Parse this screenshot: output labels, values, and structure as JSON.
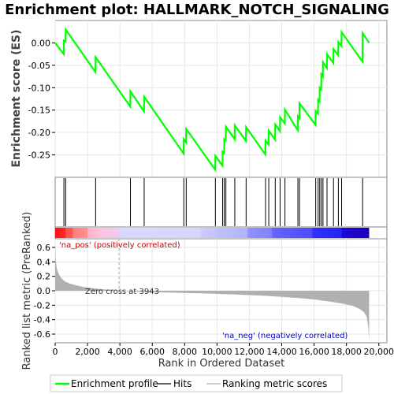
{
  "chart_data": {
    "type": "line",
    "title": "Enrichment plot: HALLMARK_NOTCH_SIGNALING",
    "xlabel": "Rank in Ordered Dataset",
    "es_ylabel": "Enrichment score (ES)",
    "metric_ylabel": "Ranked list metric (PreRanked)",
    "xlim": [
      0,
      20500
    ],
    "x_ticks": [
      0,
      2000,
      4000,
      6000,
      8000,
      10000,
      12000,
      14000,
      16000,
      18000,
      20000
    ],
    "x_tick_labels": [
      "0",
      "2,000",
      "4,000",
      "6,000",
      "8,000",
      "10,000",
      "12,000",
      "14,000",
      "16,000",
      "18,000",
      "20,000"
    ],
    "es_ylim": [
      -0.3,
      0.05
    ],
    "es_ticks": [
      0.0,
      -0.05,
      -0.1,
      -0.15,
      -0.2,
      -0.25
    ],
    "es_tick_labels": [
      "0.00",
      "-0.05",
      "-0.10",
      "-0.15",
      "-0.20",
      "-0.25"
    ],
    "metric_ylim": [
      -0.72,
      0.72
    ],
    "metric_ticks": [
      0.6,
      0.4,
      0.2,
      0.0,
      -0.2,
      -0.4,
      -0.6
    ],
    "metric_tick_labels": [
      "0.6",
      "0.4",
      "0.2",
      "0.0",
      "-0.2",
      "-0.4",
      "-0.6"
    ],
    "total_ranks": 19400,
    "zero_cross": 3943,
    "zero_cross_label": "Zero cross at 3943",
    "pos_label": "'na_pos' (positively correlated)",
    "neg_label": "'na_neg' (negatively correlated)",
    "hits": [
      540,
      650,
      2500,
      4650,
      5500,
      7950,
      8100,
      9900,
      10350,
      10450,
      10550,
      11100,
      11800,
      13000,
      13200,
      13600,
      13900,
      14200,
      15000,
      15100,
      16100,
      16250,
      16350,
      16450,
      16550,
      16800,
      17200,
      17500,
      17700,
      19000
    ],
    "enrichment_profile": {
      "x": [
        0,
        530,
        540,
        640,
        650,
        2490,
        2500,
        4640,
        4650,
        5490,
        5500,
        7940,
        7950,
        8090,
        8100,
        9890,
        9900,
        10340,
        10350,
        10440,
        10450,
        10540,
        10550,
        11090,
        11100,
        11790,
        11800,
        12990,
        13000,
        13190,
        13200,
        13590,
        13600,
        13890,
        13900,
        14190,
        14200,
        14990,
        15000,
        15090,
        15100,
        16090,
        16100,
        16240,
        16250,
        16340,
        16350,
        16440,
        16450,
        16540,
        16550,
        16790,
        16800,
        17190,
        17200,
        17490,
        17500,
        17690,
        17700,
        18990,
        19000,
        19400
      ],
      "y": [
        0.0,
        -0.025,
        0.005,
        0.003,
        0.03,
        -0.065,
        -0.032,
        -0.142,
        -0.108,
        -0.153,
        -0.12,
        -0.247,
        -0.215,
        -0.222,
        -0.192,
        -0.283,
        -0.252,
        -0.274,
        -0.243,
        -0.246,
        -0.215,
        -0.218,
        -0.187,
        -0.215,
        -0.184,
        -0.219,
        -0.188,
        -0.249,
        -0.218,
        -0.227,
        -0.196,
        -0.216,
        -0.182,
        -0.197,
        -0.166,
        -0.18,
        -0.149,
        -0.195,
        -0.164,
        -0.168,
        -0.135,
        -0.183,
        -0.152,
        -0.158,
        -0.127,
        -0.131,
        -0.1,
        -0.104,
        -0.07,
        -0.075,
        -0.043,
        -0.056,
        -0.025,
        -0.045,
        -0.014,
        -0.028,
        0.002,
        -0.007,
        0.024,
        -0.042,
        0.022,
        0.0
      ]
    },
    "metric_curve": {
      "x": [
        0,
        30,
        80,
        150,
        250,
        400,
        600,
        900,
        1300,
        1800,
        2500,
        3200,
        3943,
        5000,
        7000,
        9000,
        11000,
        13000,
        15000,
        16000,
        17000,
        17800,
        18400,
        18800,
        19100,
        19250,
        19350,
        19400
      ],
      "y": [
        0.68,
        0.45,
        0.34,
        0.27,
        0.22,
        0.17,
        0.13,
        0.1,
        0.075,
        0.05,
        0.03,
        0.015,
        0.0,
        -0.012,
        -0.025,
        -0.035,
        -0.05,
        -0.07,
        -0.1,
        -0.12,
        -0.15,
        -0.18,
        -0.21,
        -0.25,
        -0.3,
        -0.36,
        -0.5,
        -0.7
      ]
    },
    "colors": {
      "profile": "#00ff00",
      "hits": "#000000",
      "metric": "#b0b0b0",
      "zero_line": "#aaaaaa",
      "bar_pos": "#ff0000",
      "bar_neg": "#0000ff"
    },
    "legend": {
      "placement": "bottom",
      "items": [
        {
          "label": "Enrichment profile",
          "kind": "profile"
        },
        {
          "label": "Hits",
          "kind": "hits"
        },
        {
          "label": "Ranking metric scores",
          "kind": "metric"
        }
      ]
    }
  }
}
